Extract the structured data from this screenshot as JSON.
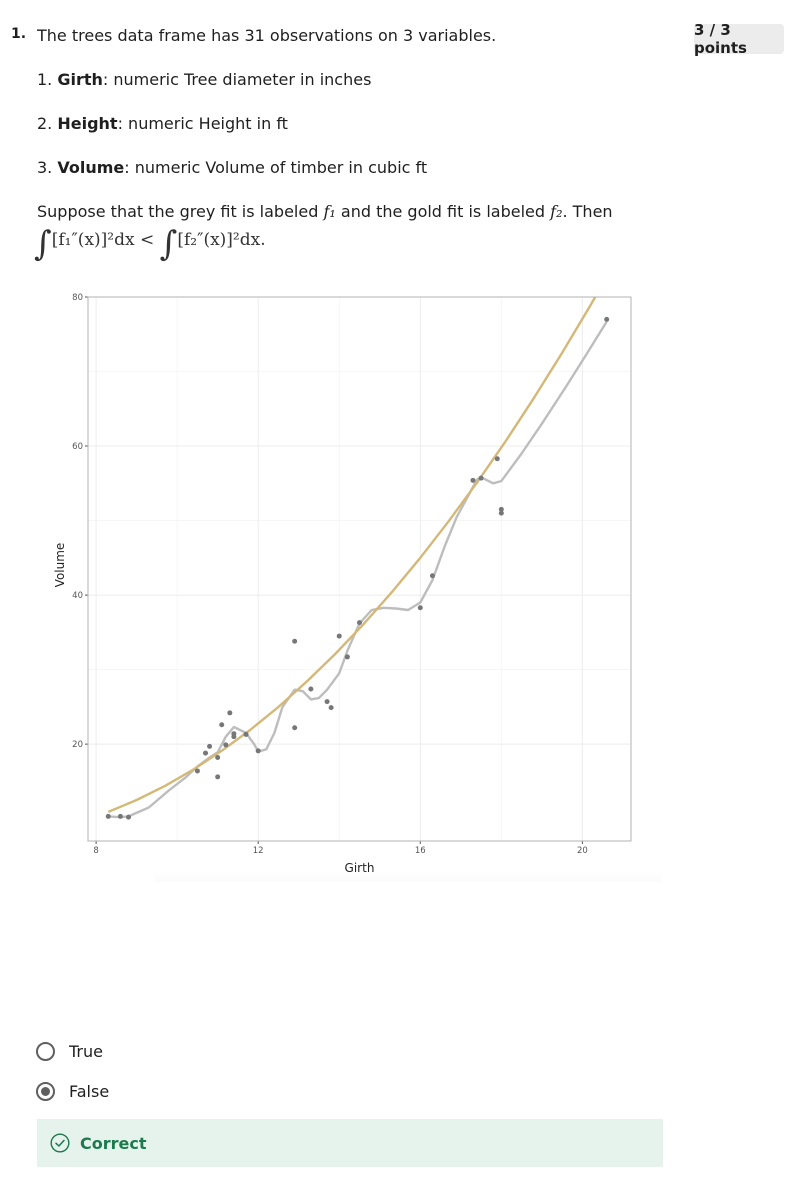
{
  "question": {
    "number": "1.",
    "points": "3 / 3 points",
    "intro": "The trees data frame has 31 observations on 3 variables.",
    "variables": [
      {
        "index": "1.",
        "name": "Girth",
        "desc": ": numeric Tree diameter in inches"
      },
      {
        "index": "2.",
        "name": "Height",
        "desc": ": numeric Height in ft"
      },
      {
        "index": "3.",
        "name": "Volume",
        "desc": ": numeric Volume of timber in cubic ft"
      }
    ],
    "suppose": {
      "part1": "Suppose that the grey fit is labeled ",
      "f1": "f₁",
      "part2": " and the gold fit is labeled ",
      "f2": "f₂",
      "part3": ".  Then"
    },
    "formula": {
      "left": "[f₁″(x)]²dx",
      "op": "<",
      "right": "[f₂″(x)]²dx."
    }
  },
  "chart_data": {
    "type": "scatter",
    "title": "",
    "xlabel": "Girth",
    "ylabel": "Volume",
    "xlim": [
      7.8,
      21.2
    ],
    "ylim": [
      7,
      80
    ],
    "xticks": [
      8,
      12,
      16,
      20
    ],
    "yticks": [
      20,
      40,
      60,
      80
    ],
    "grid": true,
    "colors": {
      "points": "#777777",
      "grey_fit": "#bdbdbd",
      "gold_fit": "#d4b878",
      "grid": "#ececec",
      "border": "#b3b3b3"
    },
    "points": [
      [
        8.3,
        10.3
      ],
      [
        8.6,
        10.3
      ],
      [
        8.8,
        10.2
      ],
      [
        10.5,
        16.4
      ],
      [
        10.7,
        18.8
      ],
      [
        10.8,
        19.7
      ],
      [
        11.0,
        15.6
      ],
      [
        11.0,
        18.2
      ],
      [
        11.1,
        22.6
      ],
      [
        11.2,
        19.9
      ],
      [
        11.3,
        24.2
      ],
      [
        11.4,
        21.0
      ],
      [
        11.4,
        21.4
      ],
      [
        11.7,
        21.3
      ],
      [
        12.0,
        19.1
      ],
      [
        12.9,
        22.2
      ],
      [
        12.9,
        33.8
      ],
      [
        13.3,
        27.4
      ],
      [
        13.7,
        25.7
      ],
      [
        13.8,
        24.9
      ],
      [
        14.0,
        34.5
      ],
      [
        14.2,
        31.7
      ],
      [
        14.5,
        36.3
      ],
      [
        16.0,
        38.3
      ],
      [
        16.3,
        42.6
      ],
      [
        17.3,
        55.4
      ],
      [
        17.5,
        55.7
      ],
      [
        17.9,
        58.3
      ],
      [
        18.0,
        51.5
      ],
      [
        18.0,
        51.0
      ],
      [
        20.6,
        77.0
      ]
    ],
    "series": [
      {
        "role": "grey fit",
        "x": [
          8.3,
          8.6,
          8.8,
          9.3,
          9.8,
          10.2,
          10.5,
          10.8,
          11.0,
          11.2,
          11.4,
          11.7,
          11.9,
          12.0,
          12.2,
          12.4,
          12.6,
          12.9,
          13.1,
          13.3,
          13.5,
          13.7,
          14.0,
          14.2,
          14.5,
          14.8,
          15.1,
          15.4,
          15.7,
          16.0,
          16.3,
          16.6,
          16.9,
          17.2,
          17.4,
          17.5,
          17.8,
          18.0,
          18.5,
          19.0,
          19.6,
          20.1,
          20.6
        ],
        "y": [
          10.3,
          10.2,
          10.3,
          11.5,
          13.8,
          15.5,
          17.0,
          18.2,
          18.9,
          21.0,
          22.3,
          21.5,
          20.0,
          19.0,
          19.3,
          21.5,
          25.0,
          27.3,
          27.1,
          26.0,
          26.2,
          27.3,
          29.5,
          32.5,
          36.2,
          38.0,
          38.3,
          38.2,
          38.0,
          39.0,
          42.0,
          46.5,
          50.5,
          53.5,
          55.5,
          55.8,
          55.0,
          55.3,
          59.0,
          63.0,
          68.0,
          72.3,
          76.7
        ]
      },
      {
        "role": "gold fit",
        "x": [
          8.3,
          9.0,
          9.7,
          10.4,
          11.1,
          11.8,
          12.5,
          13.2,
          13.9,
          14.6,
          15.3,
          16.0,
          16.7,
          17.4,
          18.1,
          18.8,
          19.5,
          20.2,
          20.6
        ],
        "y": [
          10.9,
          12.5,
          14.4,
          16.6,
          19.1,
          21.9,
          25.0,
          28.4,
          32.1,
          36.1,
          40.4,
          45.0,
          49.9,
          55.1,
          60.6,
          66.4,
          72.5,
          78.9,
          82.7
        ]
      }
    ]
  },
  "options": [
    {
      "label": "True",
      "selected": false
    },
    {
      "label": "False",
      "selected": true
    }
  ],
  "feedback": {
    "label": "Correct",
    "color": "#1c7a4d"
  }
}
